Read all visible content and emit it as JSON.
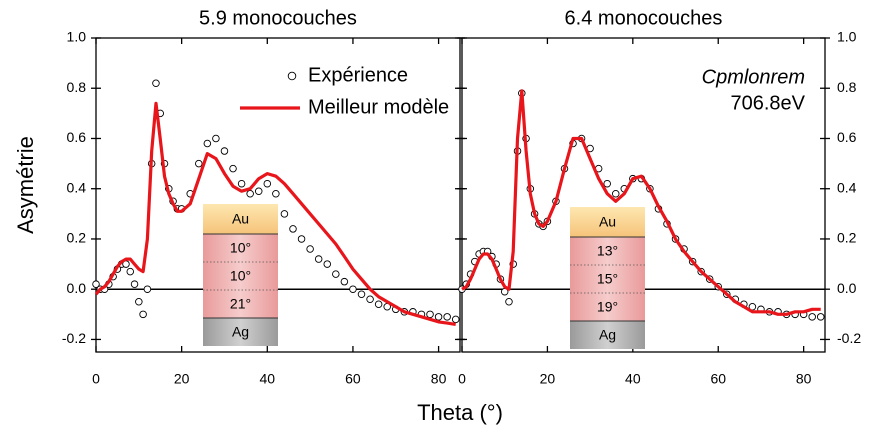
{
  "chart_data": [
    {
      "type": "scatter-line",
      "title": "5.9 monocouches",
      "x_label": "Theta (°)",
      "y_label": "Asymétrie",
      "yaxis_side": "left",
      "x": [
        0,
        1,
        2,
        3,
        4,
        5,
        6,
        7,
        8,
        9,
        10,
        11,
        12,
        13,
        14,
        15,
        16,
        17,
        18,
        19,
        20,
        22,
        24,
        26,
        28,
        30,
        32,
        34,
        36,
        38,
        40,
        42,
        44,
        46,
        48,
        50,
        52,
        54,
        56,
        58,
        60,
        62,
        64,
        66,
        68,
        70,
        72,
        74,
        76,
        78,
        80,
        82,
        84
      ],
      "series": [
        {
          "name": "Expérience",
          "color": "#000000",
          "marker": "circle",
          "values": [
            0.02,
            0.0,
            0.0,
            0.02,
            0.05,
            0.08,
            0.1,
            0.1,
            0.07,
            0.02,
            -0.05,
            -0.1,
            0.0,
            0.5,
            0.82,
            0.7,
            0.5,
            0.4,
            0.35,
            0.32,
            0.32,
            0.38,
            0.5,
            0.58,
            0.6,
            0.55,
            0.48,
            0.42,
            0.38,
            0.39,
            0.42,
            0.38,
            0.3,
            0.24,
            0.2,
            0.16,
            0.12,
            0.1,
            0.06,
            0.03,
            0.0,
            -0.02,
            -0.04,
            -0.06,
            -0.07,
            -0.08,
            -0.09,
            -0.09,
            -0.1,
            -0.1,
            -0.11,
            -0.11,
            -0.12
          ]
        },
        {
          "name": "Meilleur modèle",
          "color": "#e8151b",
          "marker": "line",
          "values": [
            -0.02,
            0.0,
            0.01,
            0.03,
            0.06,
            0.09,
            0.11,
            0.12,
            0.12,
            0.1,
            0.08,
            0.07,
            0.2,
            0.55,
            0.74,
            0.6,
            0.45,
            0.38,
            0.34,
            0.31,
            0.31,
            0.34,
            0.44,
            0.54,
            0.52,
            0.46,
            0.41,
            0.39,
            0.4,
            0.44,
            0.46,
            0.45,
            0.42,
            0.38,
            0.34,
            0.3,
            0.26,
            0.22,
            0.18,
            0.13,
            0.08,
            0.04,
            0.0,
            -0.03,
            -0.05,
            -0.07,
            -0.09,
            -0.1,
            -0.11,
            -0.12,
            -0.13,
            -0.135,
            -0.14
          ]
        }
      ],
      "xlim": [
        0,
        85
      ],
      "xticks": [
        0,
        20,
        40,
        60,
        80
      ],
      "ylim": [
        -0.25,
        1.0
      ],
      "yticks": [
        {
          "value": -0.2,
          "label": "-0.2"
        },
        {
          "value": 0,
          "label": "0.0"
        },
        0.2,
        0.4,
        0.6,
        0.8,
        {
          "value": 1,
          "label": "1.0"
        }
      ],
      "layers": [
        "Au",
        "10°",
        "10°",
        "21°",
        "Ag"
      ]
    },
    {
      "type": "scatter-line",
      "title": "6.4 monocouches",
      "yaxis_side": "right",
      "annotations": [
        "Cpmlonrem",
        "706.8eV"
      ],
      "x": [
        0,
        1,
        2,
        3,
        4,
        5,
        6,
        7,
        8,
        9,
        10,
        11,
        12,
        13,
        14,
        15,
        16,
        17,
        18,
        19,
        20,
        22,
        24,
        26,
        28,
        30,
        32,
        34,
        36,
        38,
        40,
        42,
        44,
        46,
        48,
        50,
        52,
        54,
        56,
        58,
        60,
        62,
        64,
        66,
        68,
        70,
        72,
        74,
        76,
        78,
        80,
        82,
        84
      ],
      "series": [
        {
          "name": "Expérience",
          "color": "#000000",
          "marker": "circle",
          "values": [
            0.0,
            0.02,
            0.06,
            0.11,
            0.14,
            0.15,
            0.15,
            0.13,
            0.1,
            0.04,
            -0.01,
            -0.05,
            0.1,
            0.55,
            0.78,
            0.6,
            0.4,
            0.3,
            0.26,
            0.25,
            0.27,
            0.35,
            0.48,
            0.58,
            0.6,
            0.56,
            0.48,
            0.42,
            0.38,
            0.4,
            0.44,
            0.44,
            0.4,
            0.32,
            0.26,
            0.2,
            0.16,
            0.11,
            0.07,
            0.04,
            0.01,
            -0.02,
            -0.04,
            -0.06,
            -0.07,
            -0.08,
            -0.09,
            -0.09,
            -0.1,
            -0.1,
            -0.1,
            -0.11,
            -0.11
          ]
        },
        {
          "name": "Meilleur modèle",
          "color": "#e8151b",
          "marker": "line",
          "values": [
            0.0,
            0.01,
            0.04,
            0.08,
            0.12,
            0.14,
            0.14,
            0.12,
            0.08,
            0.04,
            0.01,
            0.0,
            0.15,
            0.6,
            0.79,
            0.55,
            0.38,
            0.3,
            0.26,
            0.25,
            0.27,
            0.35,
            0.48,
            0.6,
            0.6,
            0.52,
            0.44,
            0.38,
            0.35,
            0.38,
            0.44,
            0.45,
            0.4,
            0.33,
            0.27,
            0.2,
            0.15,
            0.11,
            0.07,
            0.04,
            0.01,
            -0.02,
            -0.05,
            -0.07,
            -0.09,
            -0.09,
            -0.09,
            -0.1,
            -0.1,
            -0.09,
            -0.09,
            -0.08,
            -0.08
          ]
        }
      ],
      "xlim": [
        0,
        85
      ],
      "xticks": [
        0,
        20,
        40,
        60,
        80
      ],
      "ylim": [
        -0.25,
        1.0
      ],
      "yticks": [
        {
          "value": -0.2,
          "label": "-0.2"
        },
        {
          "value": 0,
          "label": "0.0"
        },
        0.2,
        0.4,
        0.6,
        0.8,
        {
          "value": 1,
          "label": "1.0"
        }
      ],
      "layers": [
        "Au",
        "13°",
        "15°",
        "19°",
        "Ag"
      ]
    }
  ]
}
